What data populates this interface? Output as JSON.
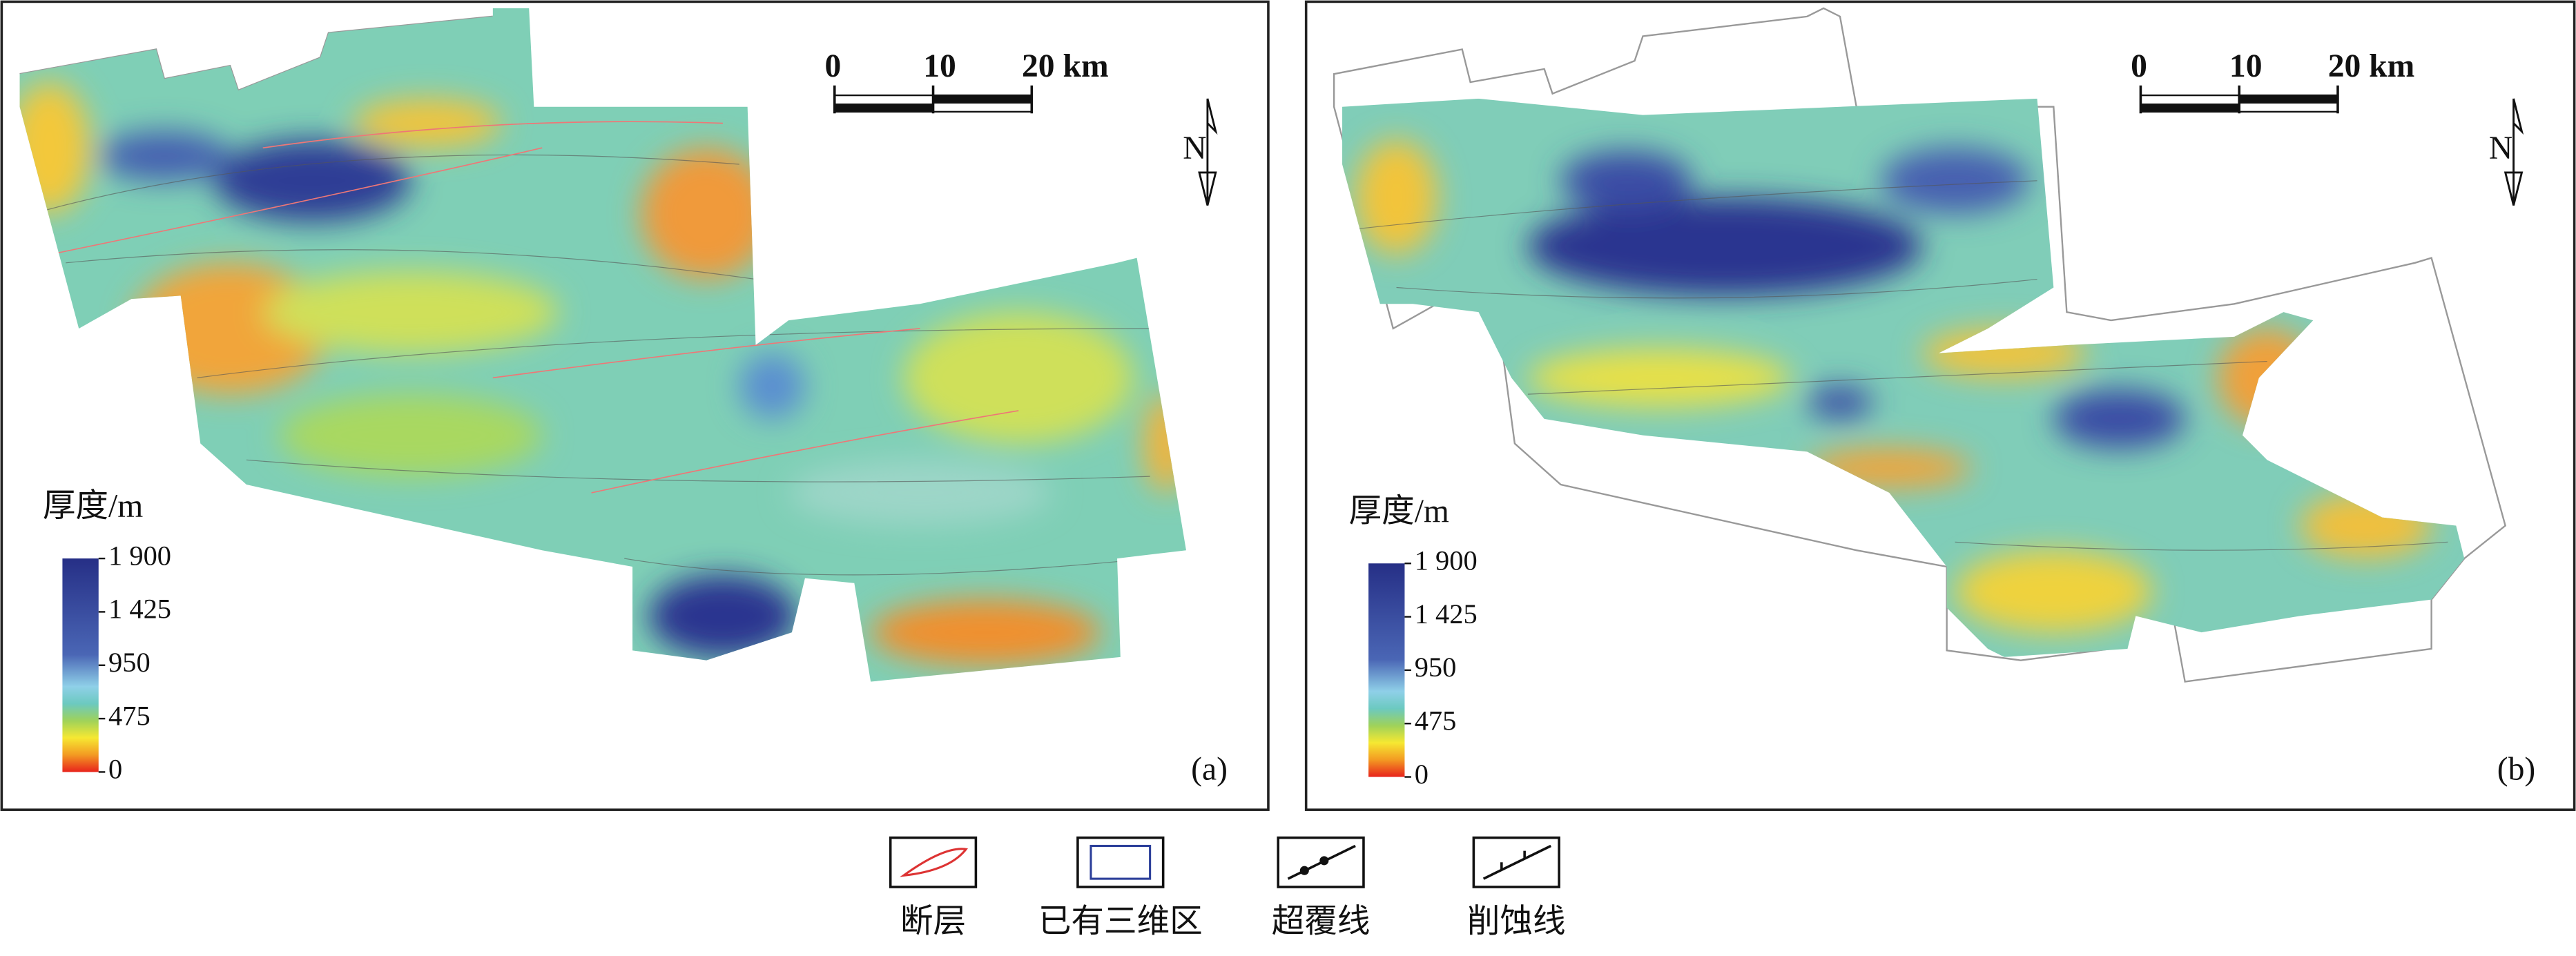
{
  "panels": [
    {
      "label": "(a)",
      "scale_bar": {
        "ticks": [
          0,
          10,
          {
            "value": 20,
            "label": "20 km"
          }
        ]
      },
      "north": "N",
      "legend_title": "厚度/m",
      "colorbar": {
        "ticks": [
          {
            "value": 1900,
            "label": "1 900"
          },
          {
            "value": 1425,
            "label": "1 425"
          },
          950,
          475,
          0
        ]
      }
    },
    {
      "label": "(b)",
      "scale_bar": {
        "ticks": [
          0,
          10,
          {
            "value": 20,
            "label": "20 km"
          }
        ]
      },
      "north": "N",
      "legend_title": "厚度/m",
      "colorbar": {
        "ticks": [
          {
            "value": 1900,
            "label": "1 900"
          },
          {
            "value": 1425,
            "label": "1 425"
          },
          950,
          475,
          0
        ]
      }
    }
  ],
  "legend": [
    "断层",
    "已有三维区",
    "超覆线",
    "削蚀线"
  ]
}
